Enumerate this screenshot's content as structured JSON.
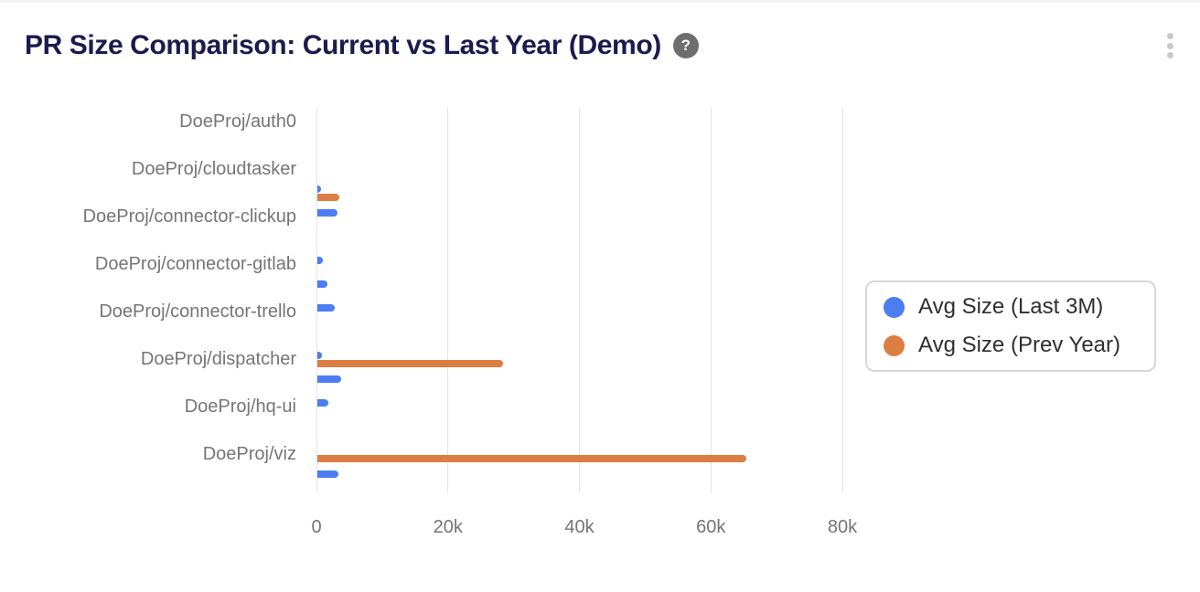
{
  "header": {
    "title": "PR Size Comparison: Current vs Last Year (Demo)",
    "help_icon_glyph": "?"
  },
  "colors": {
    "title_text": "#1c1b4e",
    "axis_text": "#757575",
    "gridline": "#e3e3e3",
    "help_icon_bg": "#6e6e6e",
    "menu_dots": "#c9c9c9",
    "legend_border": "#d8d8d8",
    "legend_text": "#2f2f2f",
    "series_blue": "#4c7df2",
    "series_orange": "#dc7e44"
  },
  "chart_data": {
    "type": "bar",
    "orientation": "horizontal",
    "title": "PR Size Comparison: Current vs Last Year (Demo)",
    "categories": [
      "DoeProj/auth0",
      "",
      "DoeProj/cloudtasker",
      "",
      "DoeProj/connector-clickup",
      "",
      "DoeProj/connector-gitlab",
      "",
      "DoeProj/connector-trello",
      "",
      "DoeProj/dispatcher",
      "",
      "DoeProj/hq-ui",
      "",
      "DoeProj/viz",
      ""
    ],
    "series": [
      {
        "name": "Avg Size (Last 3M)",
        "color": "#4c7df2",
        "values": [
          0,
          0,
          0,
          600,
          3000,
          0,
          900,
          1500,
          2650,
          0,
          700,
          3550,
          1700,
          0,
          0,
          3250
        ]
      },
      {
        "name": "Avg Size (Prev Year)",
        "color": "#dc7e44",
        "values": [
          0,
          0,
          0,
          3300,
          0,
          0,
          0,
          0,
          0,
          0,
          28200,
          0,
          0,
          0,
          65300,
          0
        ]
      }
    ],
    "x_ticks": [
      {
        "label": "0",
        "value": 0
      },
      {
        "label": "20k",
        "value": 20000
      },
      {
        "label": "40k",
        "value": 40000
      },
      {
        "label": "60k",
        "value": 60000
      },
      {
        "label": "80k",
        "value": 80000
      }
    ],
    "xlim": [
      0,
      80000
    ],
    "grid": true,
    "legend_position": "middle-right"
  }
}
